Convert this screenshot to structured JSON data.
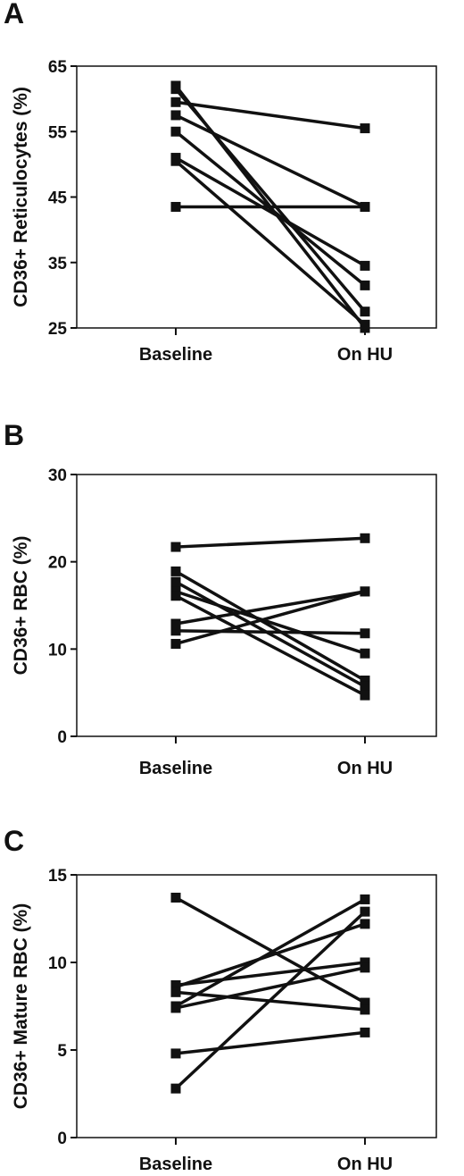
{
  "chart_data": [
    {
      "type": "line",
      "panel_label": "A",
      "ylabel": "CD36+ Reticulocytes (%)",
      "xlabel": "",
      "categories": [
        "Baseline",
        "On HU"
      ],
      "ylim": [
        25,
        65
      ],
      "yticks": [
        25,
        35,
        45,
        55,
        65
      ],
      "marker": "square",
      "color": "#111111",
      "series": [
        {
          "values": [
            62.0,
            25.0
          ]
        },
        {
          "values": [
            61.5,
            27.5
          ]
        },
        {
          "values": [
            59.5,
            55.5
          ]
        },
        {
          "values": [
            57.5,
            43.5
          ]
        },
        {
          "values": [
            55.0,
            31.5
          ]
        },
        {
          "values": [
            51.0,
            34.5
          ]
        },
        {
          "values": [
            50.5,
            25.5
          ]
        },
        {
          "values": [
            43.5,
            43.5
          ]
        }
      ]
    },
    {
      "type": "line",
      "panel_label": "B",
      "ylabel": "CD36+ RBC (%)",
      "xlabel": "",
      "categories": [
        "Baseline",
        "On HU"
      ],
      "ylim": [
        0,
        30
      ],
      "yticks": [
        0,
        10,
        20,
        30
      ],
      "marker": "square",
      "color": "#111111",
      "series": [
        {
          "values": [
            21.7,
            22.7
          ]
        },
        {
          "values": [
            18.9,
            6.4
          ]
        },
        {
          "values": [
            17.7,
            5.7
          ]
        },
        {
          "values": [
            16.6,
            9.5
          ]
        },
        {
          "values": [
            16.1,
            4.7
          ]
        },
        {
          "values": [
            12.9,
            16.6
          ]
        },
        {
          "values": [
            12.1,
            11.8
          ]
        },
        {
          "values": [
            10.6,
            16.6
          ]
        }
      ]
    },
    {
      "type": "line",
      "panel_label": "C",
      "ylabel": "CD36+ Mature RBC (%)",
      "xlabel": "",
      "categories": [
        "Baseline",
        "On HU"
      ],
      "ylim": [
        0,
        15
      ],
      "yticks": [
        0,
        5,
        10,
        15
      ],
      "marker": "square",
      "color": "#111111",
      "series": [
        {
          "values": [
            13.7,
            7.7
          ]
        },
        {
          "values": [
            8.7,
            10.0
          ]
        },
        {
          "values": [
            8.6,
            12.2
          ]
        },
        {
          "values": [
            8.3,
            7.3
          ]
        },
        {
          "values": [
            7.5,
            13.6
          ]
        },
        {
          "values": [
            7.4,
            9.7
          ]
        },
        {
          "values": [
            4.8,
            6.0
          ]
        },
        {
          "values": [
            2.8,
            12.9
          ]
        }
      ]
    }
  ]
}
